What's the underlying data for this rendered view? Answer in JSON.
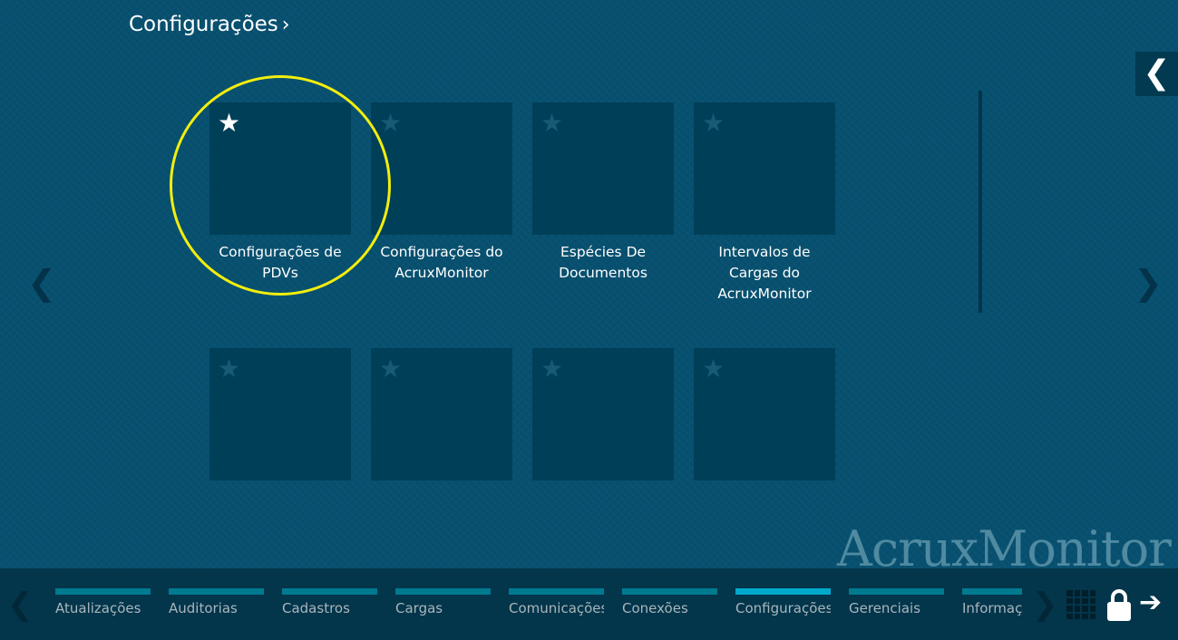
{
  "header": {
    "title": "Configurações",
    "chevron": "›"
  },
  "collapse_icon": "chevron-left-icon",
  "tiles": [
    {
      "label": "Configurações de PDVs",
      "favorite": true
    },
    {
      "label": "Configurações do AcruxMonitor",
      "favorite": false
    },
    {
      "label": "Espécies De Documentos",
      "favorite": false
    },
    {
      "label": "Intervalos de Cargas do AcruxMonitor",
      "favorite": false
    },
    {
      "label": "",
      "favorite": false
    },
    {
      "label": "",
      "favorite": false
    },
    {
      "label": "",
      "favorite": false
    },
    {
      "label": "",
      "favorite": false
    }
  ],
  "logo": "AcruxMonitor",
  "highlight_color": "#f2ee0d",
  "bottom_tabs": [
    {
      "label": "Atualizações",
      "active": false
    },
    {
      "label": "Auditorias",
      "active": false
    },
    {
      "label": "Cadastros",
      "active": false
    },
    {
      "label": "Cargas",
      "active": false
    },
    {
      "label": "Comunicações",
      "active": false
    },
    {
      "label": "Conexões",
      "active": false
    },
    {
      "label": "Configurações",
      "active": true
    },
    {
      "label": "Gerenciais",
      "active": false
    },
    {
      "label": "Informações",
      "active": false
    }
  ],
  "icons": {
    "star": "★",
    "left": "❮",
    "right": "❯",
    "exit": "➔"
  }
}
